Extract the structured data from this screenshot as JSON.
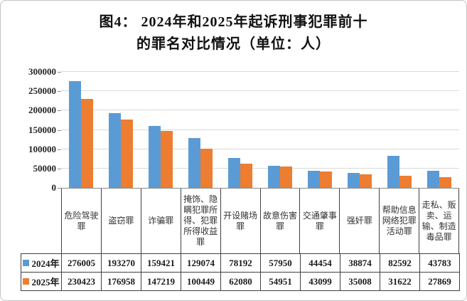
{
  "title": {
    "line1": "图4： 2024年和2025年起诉刑事犯罪前十",
    "line2": "的罪名对比情况（单位：人）"
  },
  "chart_data": {
    "type": "bar",
    "title": "图4：2024年和2025年起诉刑事犯罪前十的罪名对比情况（单位：人）",
    "unit": "人",
    "categories": [
      "危险驾驶罪",
      "盗窃罪",
      "诈骗罪",
      "掩饰、隐瞒犯罪所得、犯罪所得收益罪",
      "开设赌场罪",
      "故意伤害罪",
      "交通肇事罪",
      "强奸罪",
      "帮助信息网络犯罪活动罪",
      "走私、贩卖、运输、制造毒品罪"
    ],
    "series": [
      {
        "name": "2024年",
        "color": "#5B9BD5",
        "values": [
          276005,
          193270,
          159421,
          129074,
          78192,
          57950,
          44454,
          38874,
          82592,
          43783
        ]
      },
      {
        "name": "2025年",
        "color": "#ED7D31",
        "values": [
          230423,
          176958,
          147219,
          100449,
          62080,
          54951,
          43099,
          35008,
          31622,
          27869
        ]
      }
    ],
    "ylim": [
      0,
      300000
    ],
    "yticks": [
      0,
      50000,
      100000,
      150000,
      200000,
      250000,
      300000
    ],
    "grid": "horizontal",
    "legend_position": "data-table-left"
  },
  "colors": {
    "series_2024": "#5B9BD5",
    "series_2025": "#ED7D31",
    "gridline": "#d9d9d9",
    "axis": "#8c8c8c",
    "table_border": "#404040",
    "frame_border": "#c3c3c3"
  }
}
